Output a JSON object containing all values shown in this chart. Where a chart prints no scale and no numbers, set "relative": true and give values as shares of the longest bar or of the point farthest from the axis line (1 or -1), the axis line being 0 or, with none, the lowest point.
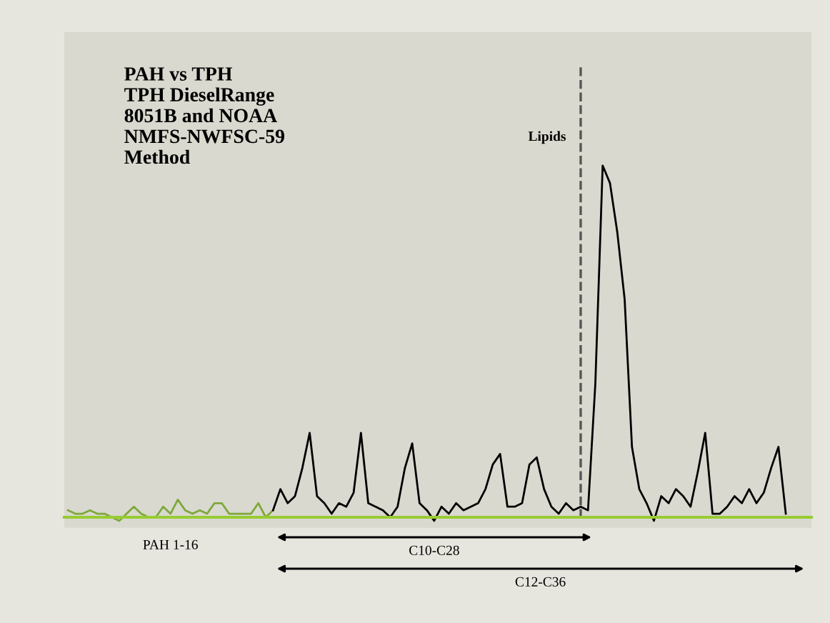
{
  "chart_data": {
    "type": "line",
    "relative": true,
    "title": "PAH vs TPH\nTPH DieselRange\n8051B and NOAA\nNMFS-NWFSC-59\nMethod",
    "categories": [
      null,
      null,
      null,
      null,
      null,
      null,
      null,
      null,
      null,
      null,
      null,
      null,
      null,
      null,
      null,
      null,
      null,
      null,
      null,
      null,
      null,
      null,
      null,
      null,
      null,
      null,
      null,
      null,
      null,
      null,
      null,
      null,
      null,
      null,
      null,
      null,
      null,
      null,
      null,
      null,
      null,
      null,
      null,
      null,
      null,
      null,
      null,
      null,
      null,
      null,
      null,
      null,
      null,
      null,
      null,
      null,
      null,
      null,
      null,
      null,
      null,
      null,
      null,
      null,
      null,
      null,
      null,
      null,
      null,
      null,
      null,
      null,
      null,
      null,
      null,
      null,
      null,
      null,
      null,
      null,
      null,
      null,
      null,
      null,
      null,
      null,
      null,
      null,
      null,
      null,
      null,
      null,
      null,
      null,
      null,
      null,
      null,
      null,
      null,
      null,
      null,
      null
    ],
    "series": [
      {
        "color": "#7ea83a",
        "values": [
          0.02,
          0.01,
          0.01,
          0.02,
          0.01,
          0.01,
          0.0,
          -0.01,
          0.01,
          0.03,
          0.01,
          0.0,
          0.0,
          0.03,
          0.01,
          0.05,
          0.02,
          0.01,
          0.02,
          0.01,
          0.04,
          0.04,
          0.01,
          0.01,
          0.01,
          0.01,
          0.04,
          0.0,
          0.02,
          null,
          null,
          null,
          null,
          null,
          null,
          null,
          null,
          null,
          null,
          null,
          null,
          null,
          null,
          null,
          null,
          null,
          null,
          null,
          null,
          null,
          null,
          null,
          null,
          null,
          null,
          null,
          null,
          null,
          null,
          null,
          null,
          null,
          null,
          null,
          null,
          null,
          null,
          null,
          null,
          null,
          null,
          null,
          null,
          null,
          null,
          null,
          null,
          null,
          null,
          null,
          null,
          null,
          null,
          null,
          null,
          null,
          null,
          null,
          null,
          null,
          null,
          null,
          null,
          null,
          null,
          null,
          null,
          null,
          null,
          null,
          null,
          null
        ]
      },
      {
        "color": "#000000",
        "values": [
          null,
          null,
          null,
          null,
          null,
          null,
          null,
          null,
          null,
          null,
          null,
          null,
          null,
          null,
          null,
          null,
          null,
          null,
          null,
          null,
          null,
          null,
          null,
          null,
          null,
          null,
          null,
          null,
          0.02,
          0.08,
          0.04,
          0.06,
          0.14,
          0.24,
          0.06,
          0.04,
          0.01,
          0.04,
          0.03,
          0.07,
          0.24,
          0.04,
          0.03,
          0.02,
          0.0,
          0.03,
          0.14,
          0.21,
          0.04,
          0.02,
          -0.01,
          0.03,
          0.01,
          0.04,
          0.02,
          0.03,
          0.04,
          0.08,
          0.15,
          0.18,
          0.03,
          0.03,
          0.04,
          0.15,
          0.17,
          0.08,
          0.03,
          0.01,
          0.04,
          0.02,
          0.03,
          0.02,
          0.38,
          1.0,
          0.95,
          0.81,
          0.62,
          0.2,
          0.08,
          0.04,
          -0.01,
          0.06,
          0.04,
          0.08,
          0.06,
          0.03,
          0.13,
          0.24,
          0.01,
          0.01,
          0.03,
          0.06,
          0.04,
          0.08,
          0.04,
          0.07,
          0.14,
          0.2,
          0.01,
          null,
          null,
          null
        ]
      }
    ],
    "annotations": [
      "PAH 1-16",
      "Lipids",
      "C10-C28",
      "C12-C36"
    ],
    "line_style": "solid",
    "marker": "none"
  }
}
